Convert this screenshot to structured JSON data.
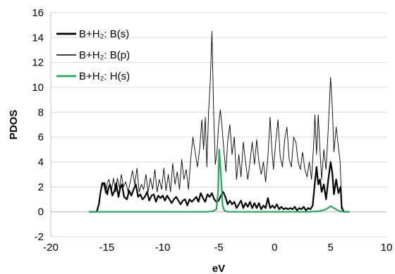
{
  "chart_data": {
    "type": "line",
    "xlabel": "eV",
    "ylabel": "PDOS",
    "xlim": [
      -20,
      10
    ],
    "ylim": [
      -2,
      16
    ],
    "x_ticks": [
      "-20",
      "-15",
      "-10",
      "-5",
      "0",
      "5",
      "10"
    ],
    "y_ticks": [
      "-2",
      "0",
      "2",
      "4",
      "6",
      "8",
      "10",
      "12",
      "14",
      "16"
    ],
    "x_tick_values": [
      -20,
      -15,
      -10,
      -5,
      0,
      5,
      10
    ],
    "y_tick_values": [
      -2,
      0,
      2,
      4,
      6,
      8,
      10,
      12,
      14,
      16
    ],
    "legend_position": "top-left",
    "series": [
      {
        "name": "B+H₂: B(s)",
        "color": "#000000",
        "points": [
          [
            -16.6,
            0.0
          ],
          [
            -15.9,
            0.0
          ],
          [
            -15.7,
            0.6
          ],
          [
            -15.55,
            1.6
          ],
          [
            -15.4,
            2.3
          ],
          [
            -15.2,
            2.3
          ],
          [
            -15.05,
            1.7
          ],
          [
            -14.95,
            1.4
          ],
          [
            -14.85,
            1.9
          ],
          [
            -14.7,
            2.2
          ],
          [
            -14.5,
            1.3
          ],
          [
            -14.3,
            1.7
          ],
          [
            -14.15,
            2.3
          ],
          [
            -13.95,
            1.2
          ],
          [
            -13.8,
            1.9
          ],
          [
            -13.65,
            2.2
          ],
          [
            -13.45,
            1.2
          ],
          [
            -13.2,
            1.0
          ],
          [
            -13.0,
            1.7
          ],
          [
            -12.8,
            1.3
          ],
          [
            -12.6,
            1.8
          ],
          [
            -12.4,
            2.2
          ],
          [
            -12.2,
            1.2
          ],
          [
            -12.0,
            1.4
          ],
          [
            -11.8,
            1.0
          ],
          [
            -11.6,
            1.2
          ],
          [
            -11.4,
            1.6
          ],
          [
            -11.2,
            0.9
          ],
          [
            -11.0,
            1.3
          ],
          [
            -10.8,
            1.4
          ],
          [
            -10.6,
            0.8
          ],
          [
            -10.4,
            1.3
          ],
          [
            -10.2,
            1.1
          ],
          [
            -10.0,
            1.3
          ],
          [
            -9.8,
            0.9
          ],
          [
            -9.6,
            1.3
          ],
          [
            -9.4,
            1.0
          ],
          [
            -9.2,
            0.7
          ],
          [
            -9.0,
            1.0
          ],
          [
            -8.8,
            1.2
          ],
          [
            -8.6,
            0.9
          ],
          [
            -8.4,
            0.6
          ],
          [
            -8.2,
            0.9
          ],
          [
            -8.0,
            1.0
          ],
          [
            -7.8,
            0.5
          ],
          [
            -7.6,
            1.0
          ],
          [
            -7.4,
            0.8
          ],
          [
            -7.2,
            1.0
          ],
          [
            -7.0,
            1.2
          ],
          [
            -6.8,
            0.8
          ],
          [
            -6.6,
            1.5
          ],
          [
            -6.4,
            1.1
          ],
          [
            -6.2,
            0.8
          ],
          [
            -6.0,
            1.4
          ],
          [
            -5.8,
            1.2
          ],
          [
            -5.6,
            1.5
          ],
          [
            -5.4,
            1.0
          ],
          [
            -5.2,
            0.8
          ],
          [
            -5.0,
            0.9
          ],
          [
            -4.8,
            1.3
          ],
          [
            -4.6,
            1.6
          ],
          [
            -4.4,
            1.2
          ],
          [
            -4.2,
            0.6
          ],
          [
            -4.0,
            0.9
          ],
          [
            -3.8,
            0.6
          ],
          [
            -3.6,
            0.8
          ],
          [
            -3.4,
            0.3
          ],
          [
            -3.2,
            0.6
          ],
          [
            -3.0,
            0.9
          ],
          [
            -2.8,
            0.3
          ],
          [
            -2.6,
            0.7
          ],
          [
            -2.4,
            0.4
          ],
          [
            -2.2,
            0.8
          ],
          [
            -2.0,
            0.3
          ],
          [
            -1.8,
            0.7
          ],
          [
            -1.6,
            0.3
          ],
          [
            -1.4,
            0.7
          ],
          [
            -1.2,
            0.2
          ],
          [
            -1.0,
            0.5
          ],
          [
            -0.8,
            0.3
          ],
          [
            -0.6,
            1.1
          ],
          [
            -0.4,
            0.3
          ],
          [
            -0.2,
            0.5
          ],
          [
            0.0,
            0.3
          ],
          [
            0.2,
            0.6
          ],
          [
            0.4,
            0.2
          ],
          [
            0.6,
            0.4
          ],
          [
            0.8,
            0.2
          ],
          [
            1.0,
            0.3
          ],
          [
            1.2,
            0.2
          ],
          [
            1.4,
            0.3
          ],
          [
            1.6,
            0.2
          ],
          [
            1.8,
            0.4
          ],
          [
            2.0,
            0.1
          ],
          [
            2.2,
            0.3
          ],
          [
            2.4,
            0.2
          ],
          [
            2.6,
            0.4
          ],
          [
            2.8,
            0.1
          ],
          [
            3.0,
            0.3
          ],
          [
            3.2,
            0.2
          ],
          [
            3.4,
            0.5
          ],
          [
            3.6,
            2.4
          ],
          [
            3.75,
            3.6
          ],
          [
            3.9,
            2.2
          ],
          [
            4.05,
            2.6
          ],
          [
            4.2,
            1.6
          ],
          [
            4.4,
            2.2
          ],
          [
            4.6,
            1.0
          ],
          [
            4.8,
            2.6
          ],
          [
            5.0,
            4.0
          ],
          [
            5.15,
            3.2
          ],
          [
            5.3,
            1.4
          ],
          [
            5.5,
            2.6
          ],
          [
            5.7,
            1.5
          ],
          [
            5.9,
            2.0
          ],
          [
            6.0,
            0.3
          ],
          [
            6.2,
            0.0
          ],
          [
            6.7,
            0.0
          ]
        ]
      },
      {
        "name": "B+H₂: B(p)",
        "color": "#000000",
        "points": [
          [
            -16.6,
            0.0
          ],
          [
            -15.9,
            0.0
          ],
          [
            -15.7,
            0.6
          ],
          [
            -15.5,
            1.8
          ],
          [
            -15.3,
            2.3
          ],
          [
            -15.1,
            1.5
          ],
          [
            -14.95,
            2.3
          ],
          [
            -14.8,
            2.6
          ],
          [
            -14.6,
            1.6
          ],
          [
            -14.4,
            2.7
          ],
          [
            -14.2,
            1.6
          ],
          [
            -14.05,
            2.7
          ],
          [
            -13.85,
            1.9
          ],
          [
            -13.7,
            3.0
          ],
          [
            -13.5,
            2.0
          ],
          [
            -13.3,
            2.4
          ],
          [
            -13.1,
            1.6
          ],
          [
            -12.9,
            2.4
          ],
          [
            -12.7,
            3.3
          ],
          [
            -12.5,
            2.2
          ],
          [
            -12.3,
            3.5
          ],
          [
            -12.1,
            1.6
          ],
          [
            -11.9,
            2.2
          ],
          [
            -11.7,
            1.8
          ],
          [
            -11.5,
            3.0
          ],
          [
            -11.3,
            1.6
          ],
          [
            -11.1,
            2.7
          ],
          [
            -10.9,
            1.8
          ],
          [
            -10.7,
            3.4
          ],
          [
            -10.5,
            1.6
          ],
          [
            -10.3,
            2.6
          ],
          [
            -10.1,
            1.8
          ],
          [
            -9.9,
            3.5
          ],
          [
            -9.7,
            1.7
          ],
          [
            -9.5,
            3.0
          ],
          [
            -9.3,
            1.6
          ],
          [
            -9.1,
            3.9
          ],
          [
            -8.9,
            2.2
          ],
          [
            -8.7,
            3.2
          ],
          [
            -8.5,
            1.8
          ],
          [
            -8.3,
            4.2
          ],
          [
            -8.1,
            2.6
          ],
          [
            -7.9,
            3.4
          ],
          [
            -7.7,
            1.8
          ],
          [
            -7.5,
            4.2
          ],
          [
            -7.3,
            6.0
          ],
          [
            -7.1,
            4.8
          ],
          [
            -6.9,
            3.6
          ],
          [
            -6.7,
            5.0
          ],
          [
            -6.5,
            7.4
          ],
          [
            -6.35,
            5.0
          ],
          [
            -6.2,
            7.6
          ],
          [
            -6.05,
            3.6
          ],
          [
            -5.9,
            8.0
          ],
          [
            -5.75,
            10.5
          ],
          [
            -5.6,
            14.5
          ],
          [
            -5.45,
            8.0
          ],
          [
            -5.3,
            3.8
          ],
          [
            -5.15,
            4.8
          ],
          [
            -5.0,
            7.0
          ],
          [
            -4.85,
            8.2
          ],
          [
            -4.7,
            6.8
          ],
          [
            -4.5,
            4.6
          ],
          [
            -4.35,
            3.2
          ],
          [
            -4.2,
            5.6
          ],
          [
            -4.0,
            7.0
          ],
          [
            -3.8,
            4.6
          ],
          [
            -3.6,
            6.0
          ],
          [
            -3.4,
            2.6
          ],
          [
            -3.2,
            4.6
          ],
          [
            -3.0,
            2.8
          ],
          [
            -2.8,
            5.6
          ],
          [
            -2.6,
            4.0
          ],
          [
            -2.4,
            2.6
          ],
          [
            -2.2,
            4.0
          ],
          [
            -2.0,
            5.6
          ],
          [
            -1.8,
            3.8
          ],
          [
            -1.6,
            5.8
          ],
          [
            -1.4,
            4.0
          ],
          [
            -1.2,
            3.0
          ],
          [
            -1.0,
            4.0
          ],
          [
            -0.8,
            2.4
          ],
          [
            -0.6,
            4.4
          ],
          [
            -0.4,
            7.6
          ],
          [
            -0.25,
            5.0
          ],
          [
            -0.1,
            3.4
          ],
          [
            0.1,
            5.6
          ],
          [
            0.3,
            7.4
          ],
          [
            0.5,
            4.4
          ],
          [
            0.7,
            3.6
          ],
          [
            0.9,
            5.8
          ],
          [
            1.1,
            6.8
          ],
          [
            1.3,
            4.2
          ],
          [
            1.5,
            3.6
          ],
          [
            1.7,
            6.0
          ],
          [
            1.9,
            5.6
          ],
          [
            2.1,
            4.0
          ],
          [
            2.3,
            3.4
          ],
          [
            2.5,
            4.8
          ],
          [
            2.7,
            3.4
          ],
          [
            2.9,
            2.8
          ],
          [
            3.1,
            4.0
          ],
          [
            3.3,
            2.6
          ],
          [
            3.5,
            5.6
          ],
          [
            3.6,
            7.8
          ],
          [
            3.75,
            4.6
          ],
          [
            3.9,
            7.8
          ],
          [
            4.05,
            5.0
          ],
          [
            4.2,
            2.6
          ],
          [
            4.4,
            5.0
          ],
          [
            4.6,
            3.4
          ],
          [
            4.8,
            6.8
          ],
          [
            5.0,
            10.8
          ],
          [
            5.15,
            8.6
          ],
          [
            5.3,
            4.8
          ],
          [
            5.5,
            6.8
          ],
          [
            5.7,
            5.2
          ],
          [
            5.85,
            4.0
          ],
          [
            6.0,
            0.5
          ],
          [
            6.2,
            0.0
          ],
          [
            6.7,
            0.0
          ]
        ]
      },
      {
        "name": "B+H₂: H(s)",
        "color": "#22aa55",
        "points": [
          [
            -16.6,
            0.0
          ],
          [
            -10.0,
            0.0
          ],
          [
            -6.0,
            0.0
          ],
          [
            -5.5,
            0.05
          ],
          [
            -5.2,
            0.2
          ],
          [
            -5.05,
            1.6
          ],
          [
            -4.95,
            5.0
          ],
          [
            -4.8,
            3.0
          ],
          [
            -4.65,
            0.5
          ],
          [
            -4.5,
            0.1
          ],
          [
            -4.2,
            0.0
          ],
          [
            0.0,
            0.0
          ],
          [
            3.0,
            0.0
          ],
          [
            4.0,
            0.05
          ],
          [
            4.6,
            0.2
          ],
          [
            5.0,
            0.45
          ],
          [
            5.4,
            0.25
          ],
          [
            5.8,
            0.05
          ],
          [
            6.2,
            0.0
          ],
          [
            6.7,
            0.0
          ]
        ]
      }
    ]
  }
}
